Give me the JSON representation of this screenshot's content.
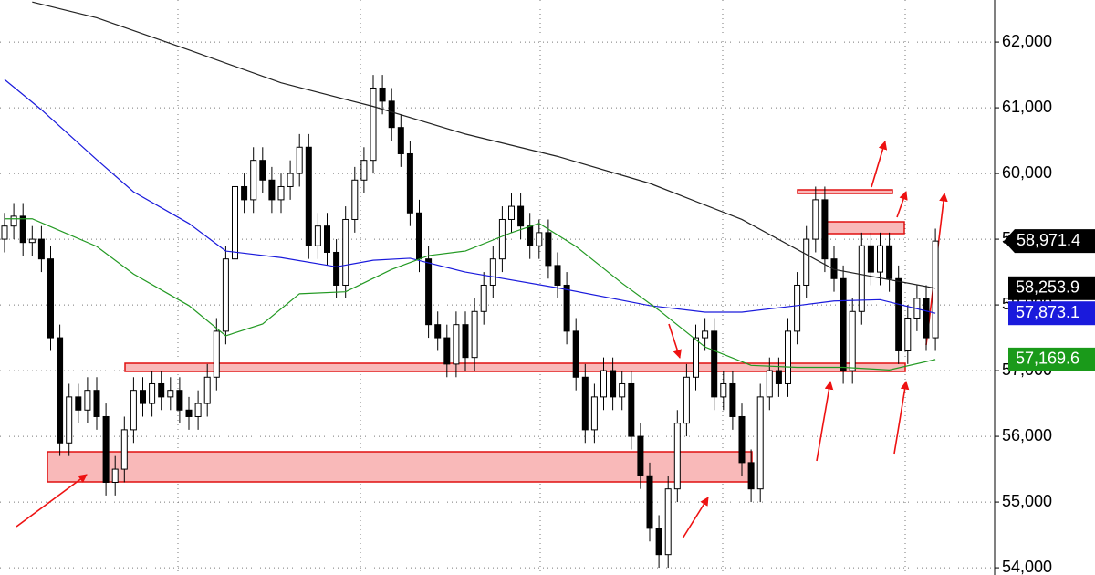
{
  "chart_data": {
    "type": "candlestick",
    "ylim": [
      53890,
      62640
    ],
    "yticks": [
      {
        "value": 54000,
        "label": "54,000"
      },
      {
        "value": 55000,
        "label": "55,000"
      },
      {
        "value": 56000,
        "label": "56,000"
      },
      {
        "value": 57000,
        "label": "57,000"
      },
      {
        "value": 58000,
        "label": "58,000"
      },
      {
        "value": 59000,
        "label": "59,000"
      },
      {
        "value": 60000,
        "label": "60,000"
      },
      {
        "value": 61000,
        "label": "61,000"
      },
      {
        "value": 62000,
        "label": "62,000"
      }
    ],
    "grid": true,
    "up_color": "#ffffff",
    "down_color": "#000000",
    "candles": {
      "open": [
        59000,
        59200,
        59350,
        58950,
        59000,
        58700,
        57500,
        55900,
        56600,
        56400,
        56700,
        56300,
        55300,
        55500,
        56100,
        56700,
        56500,
        56800,
        56600,
        56700,
        56400,
        56300,
        56500,
        56900,
        57600,
        58700,
        59800,
        59600,
        60200,
        59900,
        59600,
        59800,
        60000,
        60400,
        58900,
        59200,
        58800,
        58300,
        59300,
        59900,
        60200,
        61300,
        61100,
        60700,
        60300,
        59400,
        58700,
        57700,
        57500,
        57100,
        57700,
        57200,
        57900,
        58300,
        58700,
        59300,
        59500,
        59200,
        58900,
        59100,
        58600,
        58300,
        57600,
        56900,
        56100,
        56600,
        57000,
        56600,
        56800,
        56000,
        55400,
        54600,
        54200,
        55200,
        56200,
        56900,
        57500,
        57600,
        56600,
        56800,
        56300,
        55600,
        55200,
        56600,
        57000,
        56800,
        57600,
        58300,
        59000,
        59600,
        58700,
        58400,
        57000,
        57900,
        58900,
        58500,
        58900,
        58400,
        57300,
        57800,
        58100,
        57500
      ],
      "high": [
        59400,
        59550,
        59550,
        59200,
        59200,
        58900,
        57700,
        56800,
        56800,
        56900,
        56900,
        56500,
        55700,
        56300,
        56900,
        56900,
        57000,
        57000,
        56900,
        56900,
        56600,
        56700,
        57100,
        57800,
        58900,
        60000,
        60000,
        60400,
        60400,
        60100,
        60000,
        60200,
        60600,
        60600,
        59400,
        59400,
        59000,
        59500,
        60100,
        60400,
        61500,
        61500,
        61300,
        60900,
        60500,
        59600,
        58900,
        57900,
        57700,
        57900,
        57900,
        58100,
        58500,
        58900,
        59500,
        59700,
        59700,
        59400,
        59300,
        59300,
        58800,
        58500,
        57800,
        57100,
        56800,
        57200,
        57200,
        57000,
        57000,
        56200,
        55600,
        54800,
        55400,
        56400,
        57100,
        57700,
        57800,
        57800,
        57000,
        57000,
        56500,
        55800,
        56800,
        57200,
        57200,
        57800,
        58500,
        59200,
        59800,
        59800,
        58900,
        58600,
        58100,
        59100,
        59100,
        59100,
        59100,
        58600,
        58000,
        58300,
        58300,
        59160
      ],
      "low": [
        58800,
        59000,
        58750,
        58750,
        58500,
        57300,
        55700,
        55700,
        56200,
        56200,
        56100,
        55100,
        55100,
        55300,
        55900,
        56300,
        56300,
        56400,
        56400,
        56200,
        56100,
        56100,
        56300,
        56700,
        57400,
        58500,
        59400,
        59400,
        59700,
        59400,
        59400,
        59600,
        59800,
        58700,
        58700,
        58600,
        58100,
        58100,
        59100,
        59700,
        60000,
        60900,
        60500,
        60100,
        59200,
        58500,
        57500,
        57300,
        56900,
        56900,
        57000,
        57000,
        57700,
        58100,
        58500,
        59100,
        59000,
        58700,
        58700,
        58400,
        58100,
        57400,
        56700,
        55900,
        55900,
        56400,
        56400,
        56400,
        55800,
        55200,
        54400,
        54000,
        54000,
        55000,
        56000,
        56700,
        57300,
        56400,
        56400,
        56100,
        55400,
        55000,
        55000,
        56400,
        56600,
        56600,
        57400,
        58100,
        58800,
        58500,
        58200,
        56800,
        56800,
        57700,
        58300,
        58300,
        58200,
        57100,
        57100,
        57600,
        57300,
        57300
      ],
      "close": [
        59200,
        59350,
        58950,
        59000,
        58700,
        57500,
        55900,
        56600,
        56400,
        56700,
        56300,
        55300,
        55500,
        56100,
        56700,
        56500,
        56800,
        56600,
        56700,
        56400,
        56300,
        56500,
        56900,
        57600,
        58700,
        59800,
        59600,
        60200,
        59900,
        59600,
        59800,
        60000,
        60400,
        58900,
        59200,
        58800,
        58300,
        59300,
        59900,
        60200,
        61300,
        61100,
        60700,
        60300,
        59400,
        58700,
        57700,
        57500,
        57100,
        57700,
        57200,
        57900,
        58300,
        58700,
        59300,
        59500,
        59200,
        58900,
        59100,
        58600,
        58300,
        57600,
        56900,
        56100,
        56600,
        57000,
        56600,
        56800,
        56000,
        55400,
        54600,
        54200,
        55200,
        56200,
        56900,
        57500,
        57600,
        56600,
        56800,
        56300,
        55600,
        55200,
        56600,
        57000,
        56800,
        57600,
        58300,
        59000,
        59600,
        58700,
        58400,
        57000,
        57900,
        58900,
        58500,
        58900,
        58400,
        57300,
        57800,
        58100,
        57500,
        58971.4
      ]
    },
    "lines": [
      {
        "color": "#222222",
        "x": [
          3,
          10,
          20,
          30,
          40,
          50,
          60,
          70,
          80,
          90,
          101
        ],
        "values": [
          62610,
          62370,
          61880,
          61380,
          61020,
          60600,
          60260,
          59850,
          59300,
          58540,
          58253.9
        ],
        "value_label": "58,253.9",
        "label_bg": "#000000"
      },
      {
        "color": "#1a1adc",
        "x": [
          0,
          4,
          10,
          14,
          20,
          24,
          30,
          36,
          40,
          44,
          50,
          60,
          70,
          76,
          80,
          86,
          90,
          95,
          101
        ],
        "values": [
          61430,
          60970,
          60210,
          59720,
          59240,
          58820,
          58720,
          58580,
          58680,
          58710,
          58500,
          58260,
          57990,
          57890,
          57890,
          57990,
          58060,
          58080,
          57873.1
        ],
        "value_label": "57,873.1",
        "label_bg": "#1a1adc"
      },
      {
        "color": "#229922",
        "x": [
          0,
          3,
          10,
          14,
          20,
          24,
          28,
          32,
          37,
          42,
          46,
          50,
          55,
          58,
          62,
          67,
          71,
          76,
          81,
          86,
          91,
          96,
          101
        ],
        "values": [
          59310,
          59310,
          58890,
          58470,
          57990,
          57530,
          57710,
          58170,
          58200,
          58540,
          58750,
          58820,
          59100,
          59240,
          58890,
          58330,
          57920,
          57360,
          57080,
          57050,
          57050,
          57010,
          57169.6
        ],
        "value_label": "57,169.6",
        "label_bg": "#1a9a1a"
      }
    ],
    "last_price_label": "58,971.4"
  }
}
